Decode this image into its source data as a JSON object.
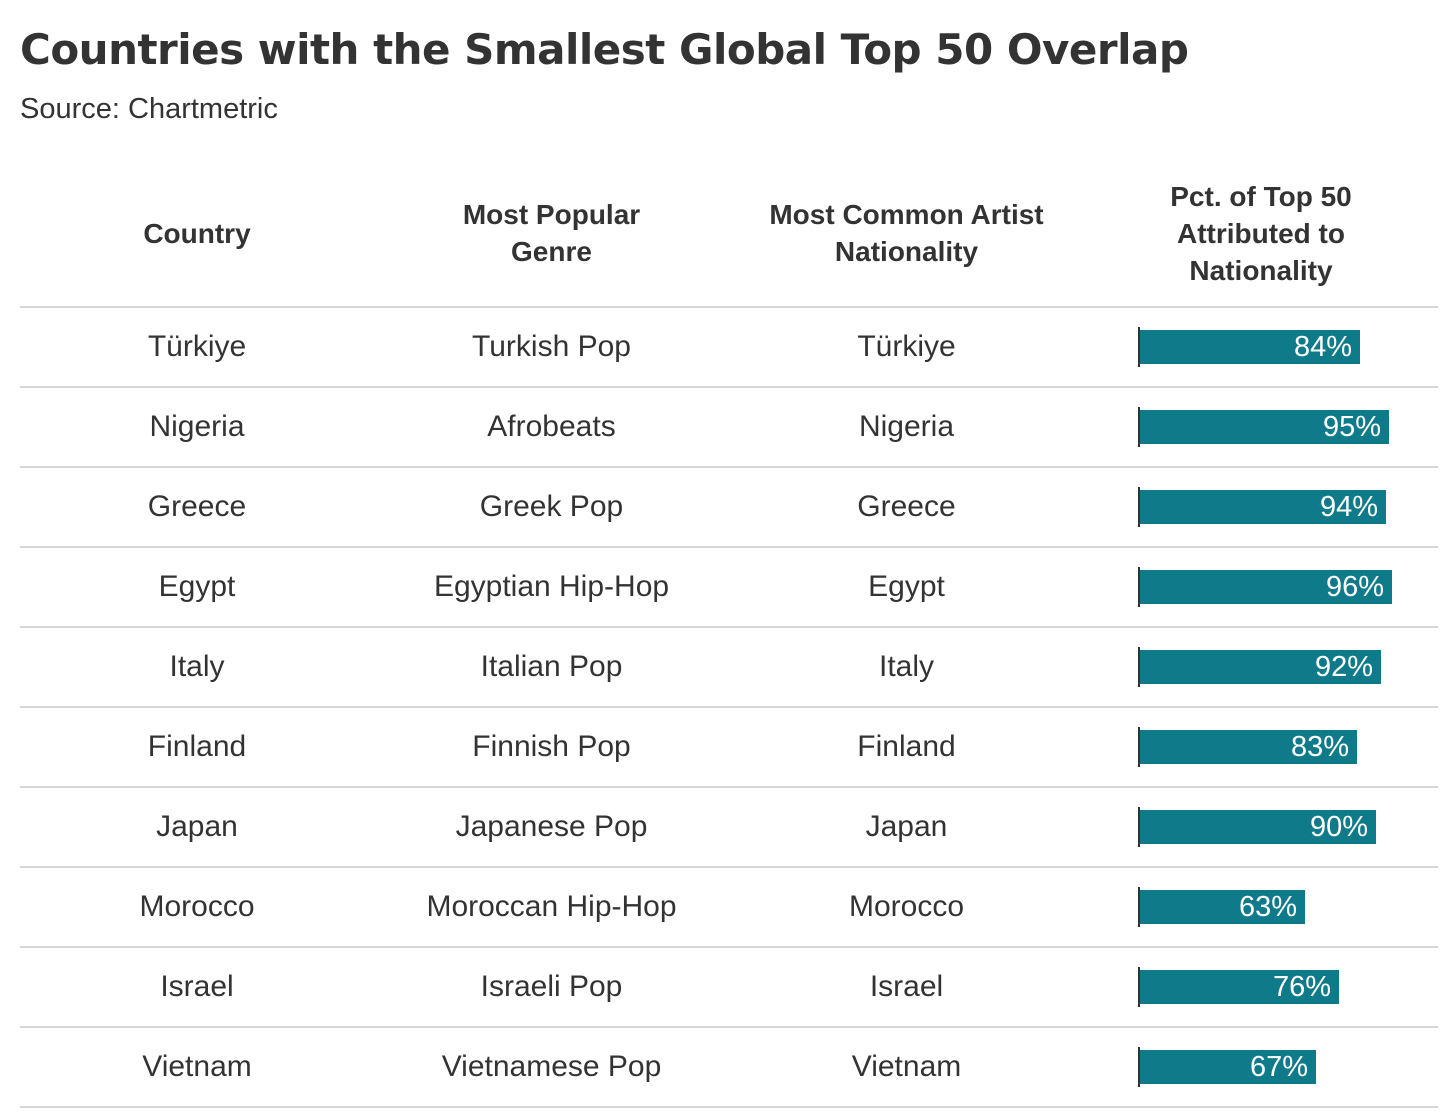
{
  "chart_data": {
    "type": "table",
    "title": "Countries with the Smallest Global Top 50 Overlap",
    "subtitle": "Source: Chartmetric",
    "columns": [
      "Country",
      "Most Popular Genre",
      "Most Common Artist Nationality",
      "Pct. of Top 50 Attributed to Nationality"
    ],
    "rows": [
      {
        "country": "Türkiye",
        "genre": "Turkish Pop",
        "nationality": "Türkiye",
        "pct": 84,
        "pct_label": "84%"
      },
      {
        "country": "Nigeria",
        "genre": "Afrobeats",
        "nationality": "Nigeria",
        "pct": 95,
        "pct_label": "95%"
      },
      {
        "country": "Greece",
        "genre": "Greek Pop",
        "nationality": "Greece",
        "pct": 94,
        "pct_label": "94%"
      },
      {
        "country": "Egypt",
        "genre": "Egyptian Hip-Hop",
        "nationality": "Egypt",
        "pct": 96,
        "pct_label": "96%"
      },
      {
        "country": "Italy",
        "genre": "Italian Pop",
        "nationality": "Italy",
        "pct": 92,
        "pct_label": "92%"
      },
      {
        "country": "Finland",
        "genre": "Finnish Pop",
        "nationality": "Finland",
        "pct": 83,
        "pct_label": "83%"
      },
      {
        "country": "Japan",
        "genre": "Japanese Pop",
        "nationality": "Japan",
        "pct": 90,
        "pct_label": "90%"
      },
      {
        "country": "Morocco",
        "genre": "Moroccan Hip-Hop",
        "nationality": "Morocco",
        "pct": 63,
        "pct_label": "63%"
      },
      {
        "country": "Israel",
        "genre": "Israeli Pop",
        "nationality": "Israel",
        "pct": 76,
        "pct_label": "76%"
      },
      {
        "country": "Vietnam",
        "genre": "Vietnamese Pop",
        "nationality": "Vietnam",
        "pct": 67,
        "pct_label": "67%"
      }
    ],
    "bar_color": "#0f7b8a",
    "bar_max": 100
  }
}
